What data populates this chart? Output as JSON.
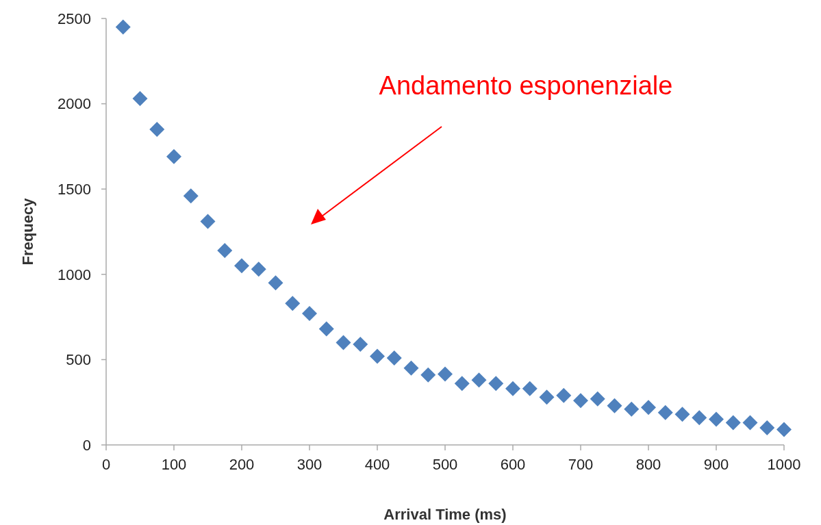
{
  "chart_data": {
    "type": "scatter",
    "xlabel": "Arrival Time (ms)",
    "ylabel": "Frequecy",
    "annotations": [
      "Andamento esponenziale"
    ],
    "x": [
      25,
      50,
      75,
      100,
      125,
      150,
      175,
      200,
      225,
      250,
      275,
      300,
      325,
      350,
      375,
      400,
      425,
      450,
      475,
      500,
      525,
      550,
      575,
      600,
      625,
      650,
      675,
      700,
      725,
      750,
      775,
      800,
      825,
      850,
      875,
      900,
      925,
      950,
      975,
      1000
    ],
    "series": [
      {
        "color": "#4f81bd",
        "values": [
          2450,
          2030,
          1850,
          1690,
          1460,
          1310,
          1140,
          1050,
          1030,
          950,
          830,
          770,
          680,
          600,
          590,
          520,
          510,
          450,
          410,
          415,
          360,
          380,
          360,
          330,
          330,
          280,
          290,
          260,
          270,
          230,
          210,
          220,
          190,
          180,
          160,
          150,
          130,
          130,
          100,
          90
        ]
      }
    ],
    "xlim": [
      0,
      1000
    ],
    "xticks": [
      0,
      100,
      200,
      300,
      400,
      500,
      600,
      700,
      800,
      900,
      1000
    ],
    "ylim": [
      0,
      2500
    ],
    "yticks": [
      0,
      500,
      1000,
      1500,
      2000,
      2500
    ],
    "marker": "diamond"
  }
}
